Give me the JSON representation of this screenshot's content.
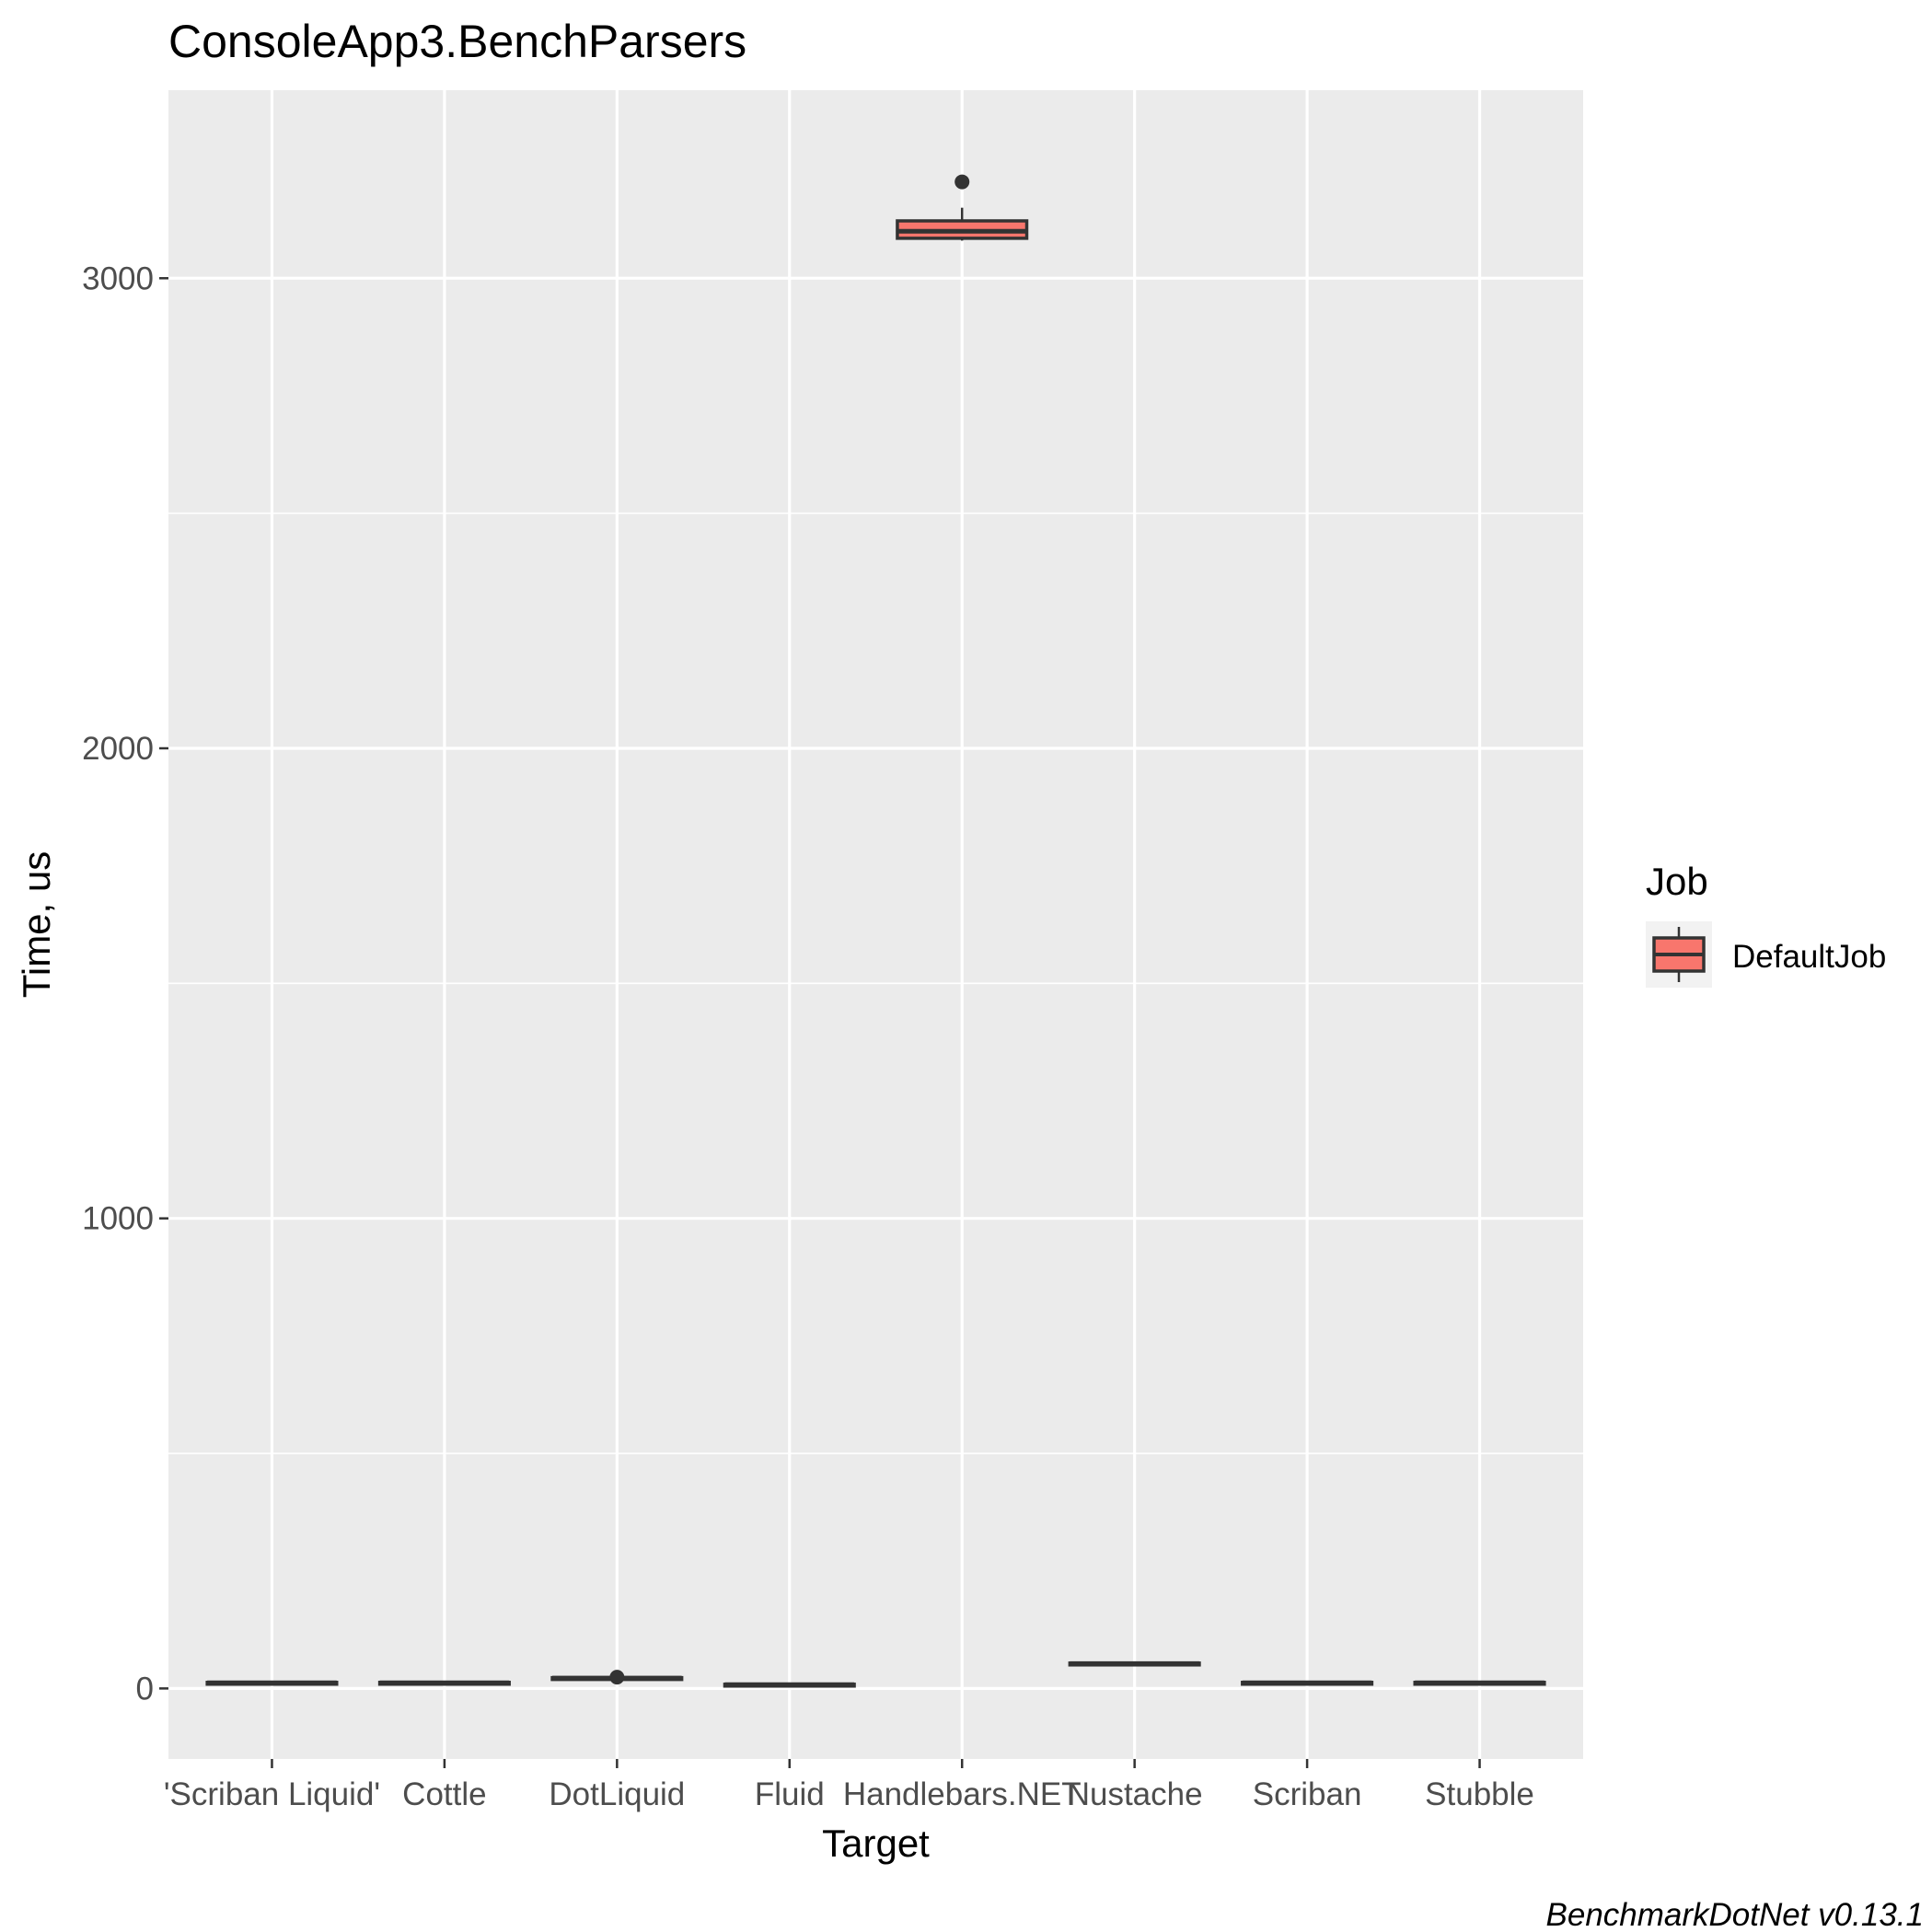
{
  "chart_data": {
    "type": "boxplot",
    "title": "ConsoleApp3.BenchParsers",
    "xlabel": "Target",
    "ylabel": "Time, us",
    "caption": "BenchmarkDotNet v0.13.1",
    "ylim": [
      -150,
      3400
    ],
    "yticks": [
      0,
      1000,
      2000,
      3000
    ],
    "grid": true,
    "legend": {
      "title": "Job",
      "position": "right",
      "entries": [
        {
          "label": "DefaultJob",
          "color": "#F8766D"
        }
      ]
    },
    "colors": {
      "panel": "#EBEBEB",
      "grid": "#FFFFFF",
      "box_fill": "#F8766D",
      "box_line": "#333333"
    },
    "categories": [
      "'Scriban Liquid'",
      "Cottle",
      "DotLiquid",
      "Fluid",
      "Handlebars.NET",
      "Nustache",
      "Scriban",
      "Stubble"
    ],
    "series": [
      {
        "name": "DefaultJob",
        "boxes": [
          {
            "category": "'Scriban Liquid'",
            "min": 10,
            "q1": 11,
            "median": 12,
            "q3": 13,
            "max": 14,
            "outliers": []
          },
          {
            "category": "Cottle",
            "min": 10,
            "q1": 11,
            "median": 12,
            "q3": 13,
            "max": 14,
            "outliers": []
          },
          {
            "category": "DotLiquid",
            "min": 20,
            "q1": 21,
            "median": 22,
            "q3": 23,
            "max": 24,
            "outliers": [
              24
            ]
          },
          {
            "category": "Fluid",
            "min": 6,
            "q1": 7,
            "median": 8,
            "q3": 9,
            "max": 10,
            "outliers": []
          },
          {
            "category": "Handlebars.NET",
            "min": 3080,
            "q1": 3085,
            "median": 3100,
            "q3": 3122,
            "max": 3150,
            "outliers": [
              3205
            ]
          },
          {
            "category": "Nustache",
            "min": 51,
            "q1": 52,
            "median": 53,
            "q3": 54,
            "max": 55,
            "outliers": []
          },
          {
            "category": "Scriban",
            "min": 10,
            "q1": 11,
            "median": 12,
            "q3": 13,
            "max": 14,
            "outliers": []
          },
          {
            "category": "Stubble",
            "min": 10,
            "q1": 11,
            "median": 12,
            "q3": 13,
            "max": 14,
            "outliers": []
          }
        ]
      }
    ]
  }
}
